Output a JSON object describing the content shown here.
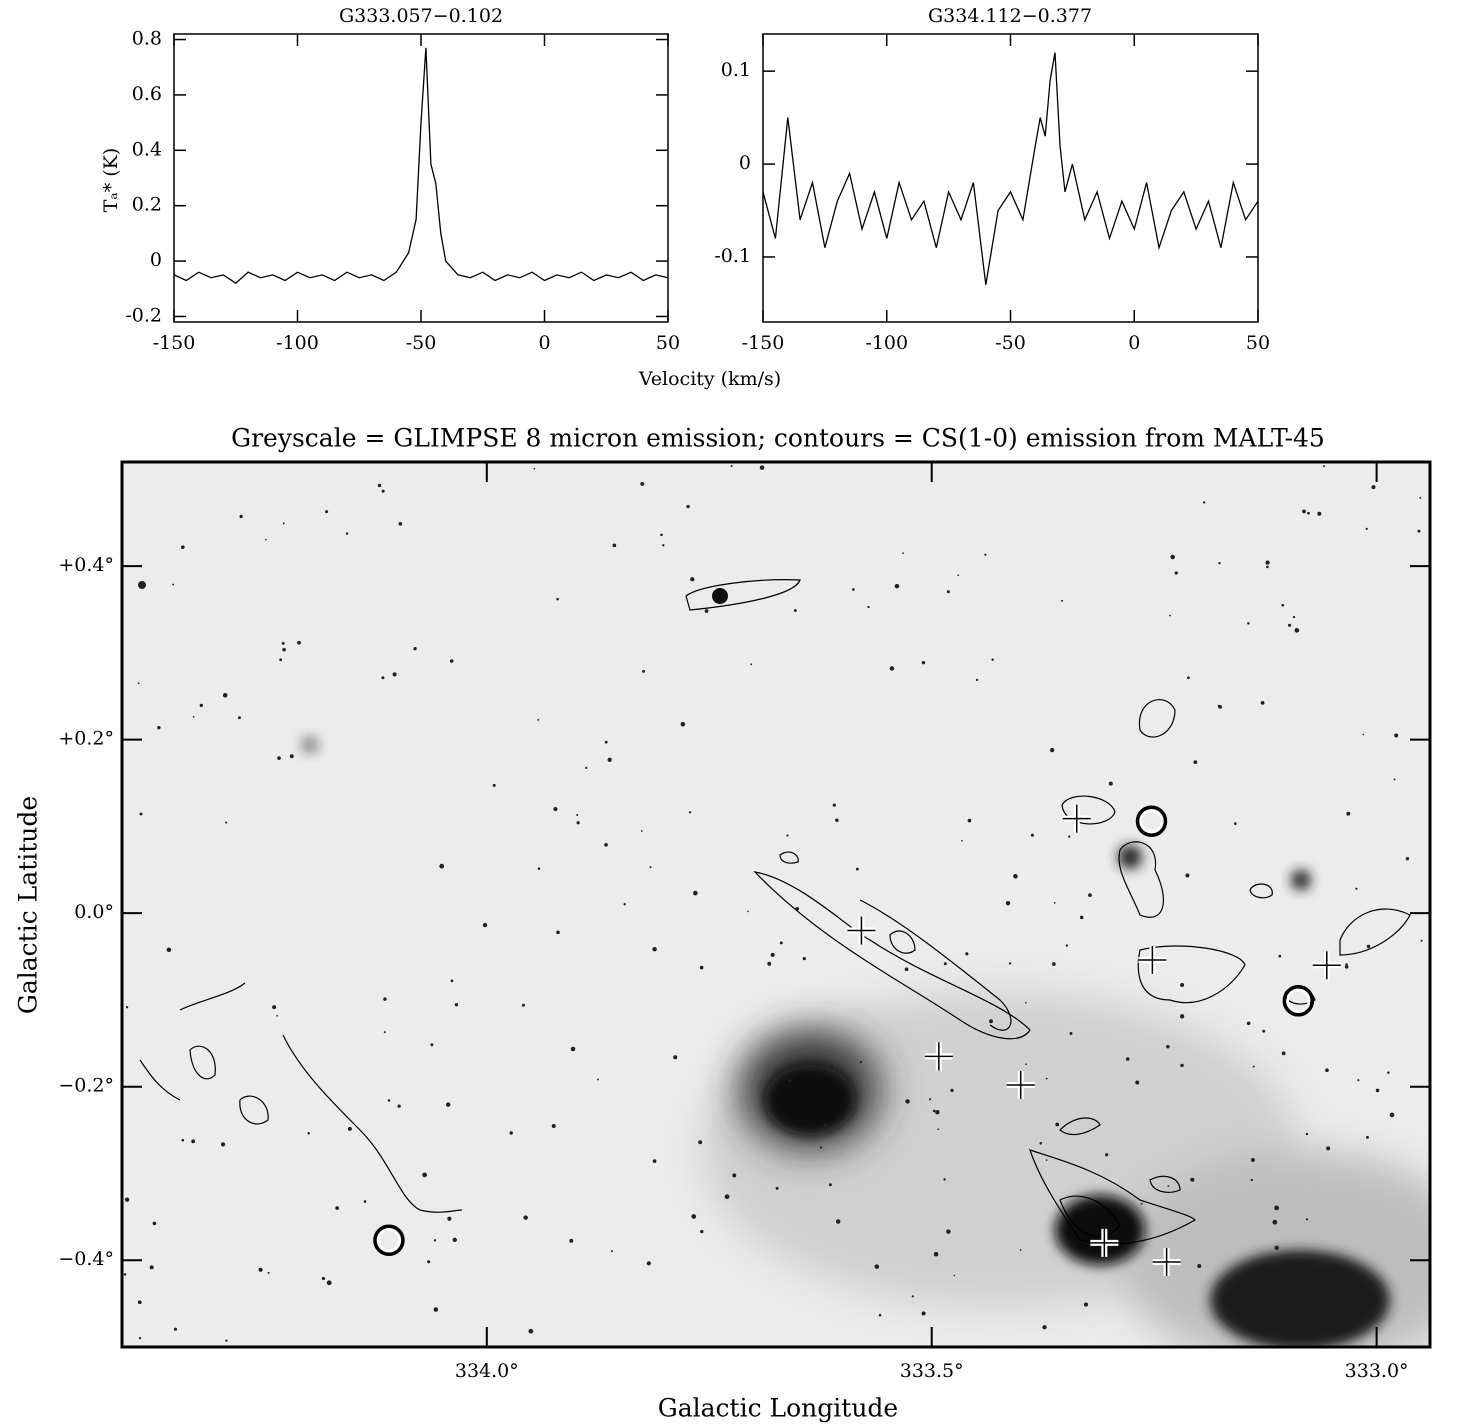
{
  "chart_data": [
    {
      "type": "line",
      "title": "G333.057−0.102",
      "y_label": "Tₐ* (K)",
      "x_label": "Velocity (km/s)",
      "color": "#000000",
      "x": [
        -150,
        -145,
        -140,
        -135,
        -130,
        -125,
        -120,
        -115,
        -110,
        -105,
        -100,
        -95,
        -90,
        -85,
        -80,
        -75,
        -70,
        -65,
        -60,
        -55,
        -52,
        -50,
        -48,
        -46,
        -44,
        -42,
        -40,
        -35,
        -30,
        -25,
        -20,
        -15,
        -10,
        -5,
        0,
        5,
        10,
        15,
        20,
        25,
        30,
        35,
        40,
        45,
        50
      ],
      "values": [
        -0.05,
        -0.07,
        -0.04,
        -0.06,
        -0.05,
        -0.08,
        -0.04,
        -0.06,
        -0.05,
        -0.07,
        -0.04,
        -0.06,
        -0.05,
        -0.07,
        -0.04,
        -0.06,
        -0.05,
        -0.07,
        -0.04,
        0.03,
        0.15,
        0.5,
        0.77,
        0.35,
        0.28,
        0.1,
        0.0,
        -0.05,
        -0.06,
        -0.04,
        -0.07,
        -0.05,
        -0.06,
        -0.04,
        -0.07,
        -0.05,
        -0.06,
        -0.04,
        -0.07,
        -0.05,
        -0.06,
        -0.04,
        -0.07,
        -0.05,
        -0.06
      ],
      "xlim": [
        -150,
        50
      ],
      "xticks": [
        -150,
        -100,
        -50,
        0,
        50
      ],
      "ylim": [
        -0.22,
        0.82
      ],
      "yticks": [
        -0.2,
        0,
        0.2,
        0.4,
        0.6,
        0.8
      ]
    },
    {
      "type": "line",
      "title": "G334.112−0.377",
      "color": "#000000",
      "x": [
        -150,
        -145,
        -140,
        -135,
        -130,
        -125,
        -120,
        -115,
        -110,
        -105,
        -100,
        -95,
        -90,
        -85,
        -80,
        -75,
        -70,
        -65,
        -60,
        -55,
        -50,
        -45,
        -40,
        -38,
        -36,
        -34,
        -32,
        -30,
        -28,
        -25,
        -20,
        -15,
        -10,
        -5,
        0,
        5,
        10,
        15,
        20,
        25,
        30,
        35,
        40,
        45,
        50
      ],
      "values": [
        -0.03,
        -0.08,
        0.05,
        -0.06,
        -0.02,
        -0.09,
        -0.04,
        -0.01,
        -0.07,
        -0.03,
        -0.08,
        -0.02,
        -0.06,
        -0.04,
        -0.09,
        -0.03,
        -0.06,
        -0.02,
        -0.13,
        -0.05,
        -0.03,
        -0.06,
        0.02,
        0.05,
        0.03,
        0.09,
        0.12,
        0.02,
        -0.03,
        0.0,
        -0.06,
        -0.03,
        -0.08,
        -0.04,
        -0.07,
        -0.02,
        -0.09,
        -0.05,
        -0.03,
        -0.07,
        -0.04,
        -0.09,
        -0.02,
        -0.06,
        -0.04
      ],
      "xlim": [
        -150,
        50
      ],
      "xticks": [
        -150,
        -100,
        -50,
        0,
        50
      ],
      "ylim": [
        -0.17,
        0.14
      ],
      "yticks": [
        -0.1,
        0,
        0.1
      ]
    },
    {
      "type": "scatter",
      "title": "Greyscale = GLIMPSE 8 micron emission; contours = CS(1-0) emission from MALT-45",
      "x_label": "Galactic Longitude",
      "y_label": "Galactic Latitude",
      "xlim": [
        334.41,
        332.94
      ],
      "ylim": [
        -0.5,
        0.52
      ],
      "xticks": [
        {
          "value": 334.0,
          "label": "334.0°"
        },
        {
          "value": 333.5,
          "label": "333.5°"
        },
        {
          "value": 333.0,
          "label": "333.0°"
        }
      ],
      "yticks": [
        {
          "value": 0.4,
          "label": "+0.4°"
        },
        {
          "value": 0.2,
          "label": "+0.2°"
        },
        {
          "value": 0,
          "label": "0.0°"
        },
        {
          "value": -0.2,
          "label": "−0.2°"
        },
        {
          "value": -0.4,
          "label": "−0.4°"
        }
      ],
      "series": [
        {
          "marker": "cross",
          "color": "#ffffff",
          "x": [
            333.337,
            333.579,
            333.252,
            333.056,
            333.492,
            333.4,
            333.306,
            333.236
          ],
          "values": [
            0.109,
            -0.02,
            -0.054,
            -0.06,
            -0.165,
            -0.198,
            -0.38,
            -0.402
          ]
        },
        {
          "marker": "circle",
          "color": "#000000",
          "x": [
            333.253,
            333.088,
            334.11
          ],
          "values": [
            0.106,
            -0.101,
            -0.377
          ]
        }
      ]
    }
  ]
}
